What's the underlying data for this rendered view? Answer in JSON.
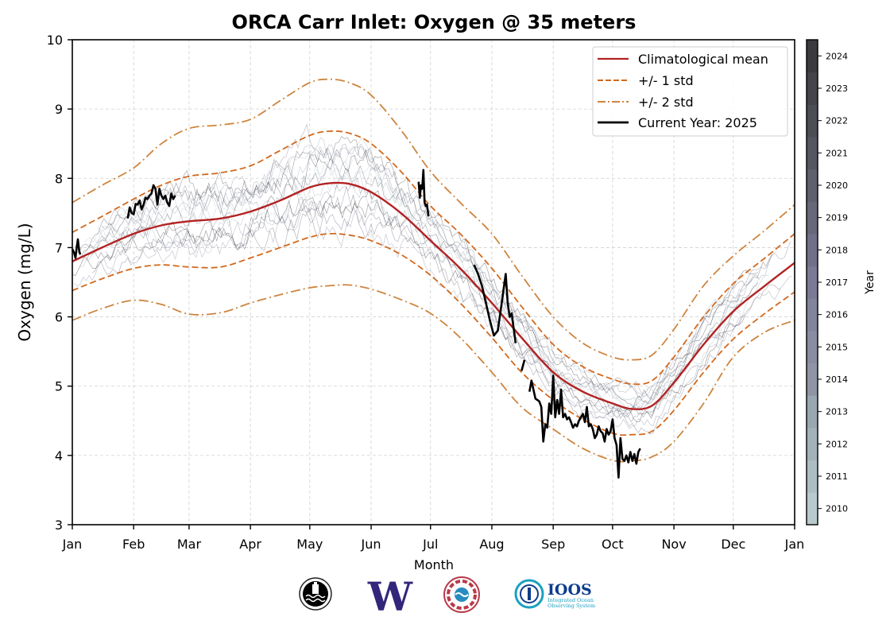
{
  "chart_data": {
    "type": "line",
    "title": "ORCA Carr Inlet: Oxygen @ 35 meters",
    "xlabel": "Month",
    "ylabel": "Oxygen (mg/L)",
    "ylim": [
      3,
      10
    ],
    "xlim_days": [
      0,
      365
    ],
    "yticks": [
      3,
      4,
      5,
      6,
      7,
      8,
      9,
      10
    ],
    "xticks": [
      {
        "label": "Jan",
        "day": 0
      },
      {
        "label": "Feb",
        "day": 31
      },
      {
        "label": "Mar",
        "day": 59
      },
      {
        "label": "Apr",
        "day": 90
      },
      {
        "label": "May",
        "day": 120
      },
      {
        "label": "Jun",
        "day": 151
      },
      {
        "label": "Jul",
        "day": 181
      },
      {
        "label": "Aug",
        "day": 212
      },
      {
        "label": "Sep",
        "day": 243
      },
      {
        "label": "Oct",
        "day": 273
      },
      {
        "label": "Nov",
        "day": 304
      },
      {
        "label": "Dec",
        "day": 334
      },
      {
        "label": "Jan",
        "day": 365
      }
    ],
    "grid": true,
    "legend_position": "top-right",
    "legend": [
      {
        "label": "Climatological mean",
        "color": "#b22222",
        "style": "solid"
      },
      {
        "label": "+/- 1 std",
        "color": "#d2691e",
        "style": "dashed"
      },
      {
        "label": "+/- 2 std",
        "color": "#cd853f",
        "style": "dashdot"
      },
      {
        "label": "Current Year: 2025",
        "color": "#000000",
        "style": "solid"
      }
    ],
    "x_days": [
      0,
      15,
      31,
      45,
      59,
      75,
      90,
      105,
      120,
      130,
      140,
      151,
      166,
      181,
      196,
      212,
      227,
      243,
      258,
      273,
      283,
      293,
      304,
      319,
      334,
      350,
      365
    ],
    "series": [
      {
        "name": "Climatological mean",
        "color": "#b22222",
        "style": "solid",
        "values": [
          6.8,
          7.0,
          7.2,
          7.32,
          7.38,
          7.42,
          7.52,
          7.68,
          7.87,
          7.93,
          7.92,
          7.8,
          7.5,
          7.1,
          6.7,
          6.2,
          5.7,
          5.2,
          4.92,
          4.75,
          4.67,
          4.72,
          5.05,
          5.6,
          6.08,
          6.45,
          6.78
        ]
      },
      {
        "name": "+1 std",
        "color": "#d2691e",
        "style": "dashed",
        "values": [
          7.22,
          7.45,
          7.7,
          7.9,
          8.03,
          8.08,
          8.18,
          8.4,
          8.62,
          8.68,
          8.65,
          8.5,
          8.1,
          7.6,
          7.2,
          6.7,
          6.15,
          5.6,
          5.28,
          5.1,
          5.03,
          5.08,
          5.42,
          6.0,
          6.48,
          6.85,
          7.2
        ]
      },
      {
        "name": "-1 std",
        "color": "#d2691e",
        "style": "dashed",
        "values": [
          6.38,
          6.55,
          6.7,
          6.75,
          6.72,
          6.72,
          6.85,
          7.0,
          7.15,
          7.2,
          7.18,
          7.1,
          6.9,
          6.6,
          6.2,
          5.7,
          5.2,
          4.8,
          4.52,
          4.32,
          4.3,
          4.35,
          4.65,
          5.2,
          5.68,
          6.05,
          6.36
        ]
      },
      {
        "name": "+2 std",
        "color": "#cd853f",
        "style": "dashdot",
        "values": [
          7.65,
          7.9,
          8.15,
          8.5,
          8.72,
          8.77,
          8.85,
          9.12,
          9.38,
          9.43,
          9.38,
          9.2,
          8.7,
          8.1,
          7.65,
          7.2,
          6.6,
          6.0,
          5.62,
          5.42,
          5.38,
          5.45,
          5.82,
          6.45,
          6.88,
          7.25,
          7.62
        ]
      },
      {
        "name": "-2 std",
        "color": "#cd853f",
        "style": "dashdot",
        "values": [
          5.95,
          6.12,
          6.24,
          6.18,
          6.04,
          6.06,
          6.2,
          6.32,
          6.42,
          6.45,
          6.46,
          6.4,
          6.25,
          6.05,
          5.7,
          5.2,
          4.7,
          4.38,
          4.1,
          3.93,
          3.92,
          3.98,
          4.2,
          4.75,
          5.42,
          5.78,
          5.95
        ]
      }
    ],
    "current_year": {
      "name": "Current Year: 2025",
      "color": "#000000",
      "segments": [
        {
          "days": [
            0,
            1,
            1.6,
            2.2,
            2.8,
            3.5,
            4.0
          ],
          "values": [
            6.98,
            6.92,
            6.85,
            7.0,
            7.12,
            6.95,
            6.9
          ]
        },
        {
          "days": [
            28,
            29,
            30,
            31,
            32,
            33,
            34,
            35,
            36,
            37,
            38,
            39,
            40,
            41,
            42,
            43,
            44,
            45,
            46,
            47,
            48,
            49,
            50,
            51,
            52
          ],
          "values": [
            7.42,
            7.58,
            7.5,
            7.48,
            7.63,
            7.62,
            7.68,
            7.55,
            7.62,
            7.72,
            7.7,
            7.75,
            7.78,
            7.9,
            7.85,
            7.62,
            7.85,
            7.75,
            7.7,
            7.75,
            7.65,
            7.6,
            7.78,
            7.7,
            7.75
          ]
        },
        {
          "days": [
            175,
            175.6,
            176.2,
            176.8,
            177.4,
            178,
            178.6,
            179.2,
            180
          ],
          "values": [
            7.95,
            7.72,
            7.9,
            7.85,
            8.12,
            7.65,
            7.6,
            7.62,
            7.45
          ]
        },
        {
          "days": [
            203,
            205,
            207,
            209,
            211,
            213,
            215,
            217,
            219,
            220,
            221,
            222,
            224
          ],
          "values": [
            6.75,
            6.62,
            6.45,
            6.2,
            5.95,
            5.73,
            5.8,
            6.2,
            6.62,
            6.2,
            6.0,
            6.05,
            5.62
          ]
        },
        {
          "days": [
            227,
            228.5
          ],
          "values": [
            5.22,
            5.38
          ]
        },
        {
          "days": [
            231,
            232,
            233,
            234,
            235,
            236,
            237,
            238,
            239,
            240,
            241,
            242,
            243,
            244,
            245,
            246,
            247,
            248,
            249,
            250,
            251,
            252,
            253,
            254,
            255,
            256,
            257,
            258,
            259,
            260,
            261,
            262,
            263,
            264,
            265,
            266,
            267,
            268,
            269,
            270,
            271,
            272,
            273,
            274,
            275,
            276,
            277,
            278,
            279,
            280,
            281,
            282,
            283,
            284,
            285,
            286,
            287
          ],
          "values": [
            4.92,
            5.08,
            4.95,
            4.82,
            4.8,
            4.78,
            4.7,
            4.2,
            4.45,
            4.4,
            4.75,
            4.6,
            5.15,
            4.55,
            4.8,
            4.6,
            4.95,
            4.55,
            4.6,
            4.52,
            4.55,
            4.48,
            4.4,
            4.45,
            4.42,
            4.5,
            4.55,
            4.6,
            4.48,
            4.7,
            4.42,
            4.45,
            4.38,
            4.25,
            4.3,
            4.42,
            4.35,
            4.32,
            4.2,
            4.38,
            4.3,
            4.35,
            4.52,
            4.25,
            4.15,
            3.68,
            4.25,
            3.95,
            3.92,
            4.0,
            3.9,
            4.05,
            3.92,
            4.02,
            3.88,
            4.05,
            4.1
          ]
        }
      ]
    },
    "historical_years": {
      "colorbar_label": "Year",
      "years": [
        2010,
        2011,
        2012,
        2013,
        2014,
        2015,
        2016,
        2017,
        2018,
        2019,
        2020,
        2021,
        2022,
        2023,
        2024
      ],
      "colors": [
        "#b8cacd",
        "#adbec3",
        "#a3b2b9",
        "#99a7b1",
        "#9095a6",
        "#8a8da2",
        "#82849c",
        "#7a7a94",
        "#717089",
        "#68687a",
        "#5f5f6e",
        "#565661",
        "#4d4d55",
        "#44444a",
        "#3b3b3e"
      ]
    }
  },
  "logos": [
    {
      "name": "orca-buoy-logo"
    },
    {
      "name": "uw-logo",
      "text": "W"
    },
    {
      "name": "tribal-logo"
    },
    {
      "name": "ioos-logo",
      "text": "IOOS",
      "subtitle1": "Integrated Ocean",
      "subtitle2": "Observing System"
    }
  ]
}
